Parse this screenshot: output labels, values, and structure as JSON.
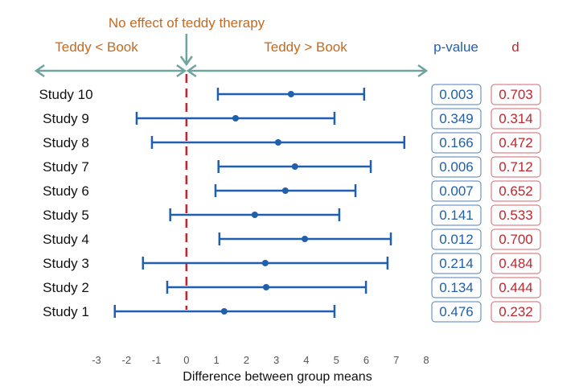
{
  "chart_data": {
    "type": "forest",
    "title": "",
    "xlabel": "Difference between group means",
    "ylabel": "",
    "xlim": [
      -3,
      8
    ],
    "x_ticks": [
      "-3",
      "-2",
      "-1",
      "0",
      "1",
      "2",
      "3",
      "4",
      "5",
      "6",
      "7",
      "8"
    ],
    "grid": false,
    "reference_line": {
      "x": 0,
      "label": "No effect of teddy therapy",
      "color": "#C1272D",
      "style": "dashed"
    },
    "direction_labels": {
      "left": "Teddy < Book",
      "right": "Teddy > Book"
    },
    "column_headers": {
      "p_value": "p-value",
      "d": "d"
    },
    "studies": [
      {
        "label": "Study 10",
        "estimate": 3.49,
        "lower": 1.05,
        "upper": 5.93,
        "p_value": "0.003",
        "d": "0.703"
      },
      {
        "label": "Study 9",
        "estimate": 1.64,
        "lower": -1.66,
        "upper": 4.94,
        "p_value": "0.349",
        "d": "0.314"
      },
      {
        "label": "Study 8",
        "estimate": 3.06,
        "lower": -1.15,
        "upper": 7.27,
        "p_value": "0.166",
        "d": "0.472"
      },
      {
        "label": "Study 7",
        "estimate": 3.62,
        "lower": 1.07,
        "upper": 6.15,
        "p_value": "0.006",
        "d": "0.712"
      },
      {
        "label": "Study 6",
        "estimate": 3.3,
        "lower": 0.97,
        "upper": 5.64,
        "p_value": "0.007",
        "d": "0.652"
      },
      {
        "label": "Study 5",
        "estimate": 2.28,
        "lower": -0.54,
        "upper": 5.1,
        "p_value": "0.141",
        "d": "0.533"
      },
      {
        "label": "Study 4",
        "estimate": 3.95,
        "lower": 1.1,
        "upper": 6.82,
        "p_value": "0.012",
        "d": "0.700"
      },
      {
        "label": "Study 3",
        "estimate": 2.63,
        "lower": -1.45,
        "upper": 6.71,
        "p_value": "0.214",
        "d": "0.484"
      },
      {
        "label": "Study 2",
        "estimate": 2.66,
        "lower": -0.64,
        "upper": 5.99,
        "p_value": "0.134",
        "d": "0.444"
      },
      {
        "label": "Study 1",
        "estimate": 1.26,
        "lower": -2.39,
        "upper": 4.94,
        "p_value": "0.476",
        "d": "0.232"
      }
    ],
    "colors": {
      "interval": "#1F5FAD",
      "reference": "#C1272D",
      "annotation_text": "#C8681A",
      "arrows": "#6FA39C",
      "p_value": "#1F5FAD",
      "d": "#C1272D",
      "tick_text": "#555555"
    }
  }
}
